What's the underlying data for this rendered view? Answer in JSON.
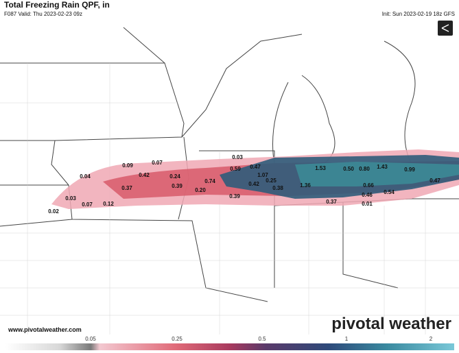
{
  "header": {
    "title": "Total Freezing Rain QPF, in",
    "valid": "F087 Valid: Thu 2023-02-23 09z",
    "init": "Init: Sun 2023-02-19 18z GFS"
  },
  "point_labels": [
    "0.04",
    "0.09",
    "0.42",
    "0.07",
    "0.37",
    "0.03",
    "0.07",
    "0.12",
    "0.02",
    "0.24",
    "0.39",
    "0.20",
    "0.74",
    "0.03",
    "0.59",
    "0.47",
    "1.07",
    "0.25",
    "0.42",
    "0.38",
    "0.39",
    "1.53",
    "0.50",
    "0.80",
    "1.43",
    "0.99",
    "1.36",
    "0.37",
    "0.66",
    "0.46",
    "0.54",
    "0.01",
    "0.47"
  ],
  "colorbar": {
    "ticks": [
      "0.05",
      "0.25",
      "0.5",
      "1",
      "2"
    ]
  },
  "footer": {
    "url": "www.pivotalweather.com",
    "brand": "pivotal weather"
  }
}
